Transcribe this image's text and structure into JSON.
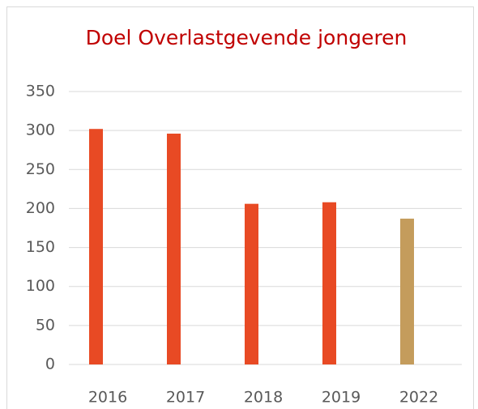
{
  "chart_data": {
    "type": "bar",
    "title": "Doel Overlastgevende jongeren",
    "categories": [
      "2016",
      "2017",
      "2018",
      "2019",
      "2022"
    ],
    "values": [
      302,
      296,
      206,
      208,
      187
    ],
    "colors": [
      "#e84a24",
      "#e84a24",
      "#e84a24",
      "#e84a24",
      "#c49c5c"
    ],
    "ylim": [
      0,
      350
    ],
    "yticks": [
      0,
      50,
      100,
      150,
      200,
      250,
      300,
      350
    ],
    "grid": true
  }
}
